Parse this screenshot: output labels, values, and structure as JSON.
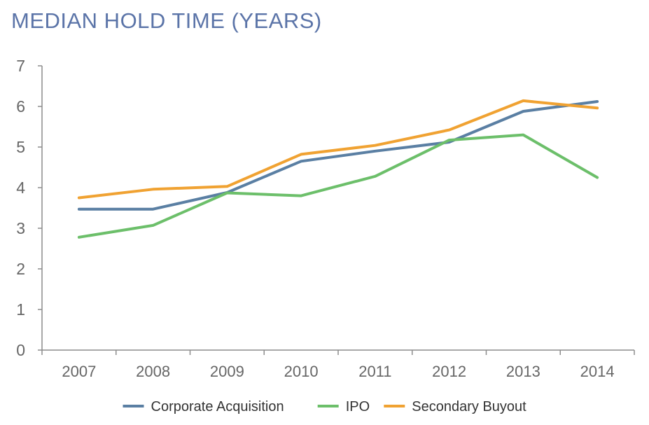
{
  "chart_data": {
    "type": "line",
    "title": "MEDIAN HOLD TIME (YEARS)",
    "xlabel": "",
    "ylabel": "",
    "categories": [
      "2007",
      "2008",
      "2009",
      "2010",
      "2011",
      "2012",
      "2013",
      "2014"
    ],
    "ylim": [
      0,
      7
    ],
    "yticks": [
      "0",
      "1",
      "2",
      "3",
      "4",
      "5",
      "6",
      "7"
    ],
    "grid": false,
    "legend_position": "bottom",
    "series": [
      {
        "name": "Corporate Acquisition",
        "color": "#5A7FA3",
        "values": [
          3.47,
          3.47,
          3.88,
          4.65,
          4.9,
          5.12,
          5.88,
          6.12
        ]
      },
      {
        "name": "IPO",
        "color": "#6CBF6A",
        "values": [
          2.78,
          3.07,
          3.87,
          3.8,
          4.28,
          5.17,
          5.3,
          4.25
        ]
      },
      {
        "name": "Secondary Buyout",
        "color": "#F0A232",
        "values": [
          3.75,
          3.96,
          4.03,
          4.82,
          5.04,
          5.42,
          6.14,
          5.96
        ]
      }
    ]
  }
}
